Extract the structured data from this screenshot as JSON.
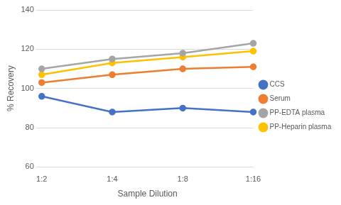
{
  "chart_data": {
    "type": "line",
    "x_label": "Sample Dilution",
    "y_label": "% Recovery",
    "categories": [
      "1:2",
      "1:4",
      "1:8",
      "1:16"
    ],
    "series": [
      {
        "name": "CCS",
        "color": "#4472c4",
        "values": [
          96,
          88,
          90,
          88
        ]
      },
      {
        "name": "Serum",
        "color": "#ed7d31",
        "values": [
          103,
          107,
          110,
          111
        ]
      },
      {
        "name": "PP-EDTA plasma",
        "color": "#a5a5a5",
        "values": [
          110,
          115,
          118,
          123
        ]
      },
      {
        "name": "PP-Heparin plasma",
        "color": "#ffc000",
        "values": [
          107,
          113,
          116,
          119
        ]
      }
    ],
    "ylim": [
      60,
      140
    ],
    "yticks": [
      60,
      80,
      100,
      120,
      140
    ],
    "grid": true,
    "legend": "right",
    "marker": "circle",
    "line_style": "solid"
  }
}
